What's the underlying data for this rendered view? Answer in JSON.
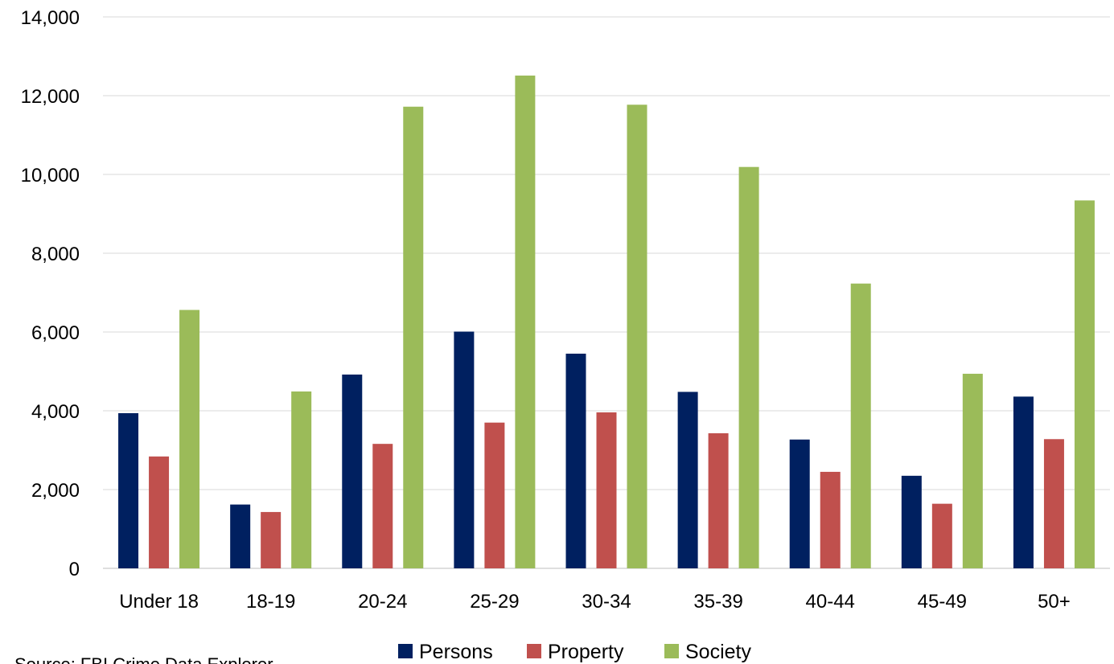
{
  "chart_data": {
    "type": "bar",
    "title": "",
    "xlabel": "",
    "ylabel": "",
    "categories": [
      "Under 18",
      "18-19",
      "20-24",
      "25-29",
      "30-34",
      "35-39",
      "40-44",
      "45-49",
      "50+"
    ],
    "series": [
      {
        "name": "Persons",
        "color": "#002060",
        "values": [
          3940,
          1620,
          4920,
          6010,
          5450,
          4480,
          3270,
          2350,
          4360
        ]
      },
      {
        "name": "Property",
        "color": "#C0504D",
        "values": [
          2840,
          1430,
          3160,
          3700,
          3960,
          3430,
          2450,
          1640,
          3280
        ]
      },
      {
        "name": "Society",
        "color": "#9BBB59",
        "values": [
          6560,
          4490,
          11720,
          12510,
          11770,
          10190,
          7230,
          4940,
          9340
        ]
      }
    ],
    "ylim": [
      0,
      14000
    ],
    "y_ticks": [
      0,
      2000,
      4000,
      6000,
      8000,
      10000,
      12000,
      14000
    ],
    "y_tick_labels": [
      "0",
      "2,000",
      "4,000",
      "6,000",
      "8,000",
      "10,000",
      "12,000",
      "14,000"
    ],
    "grid": true,
    "legend_position": "bottom"
  },
  "source": "Source: FBI Crime Data Explorer"
}
